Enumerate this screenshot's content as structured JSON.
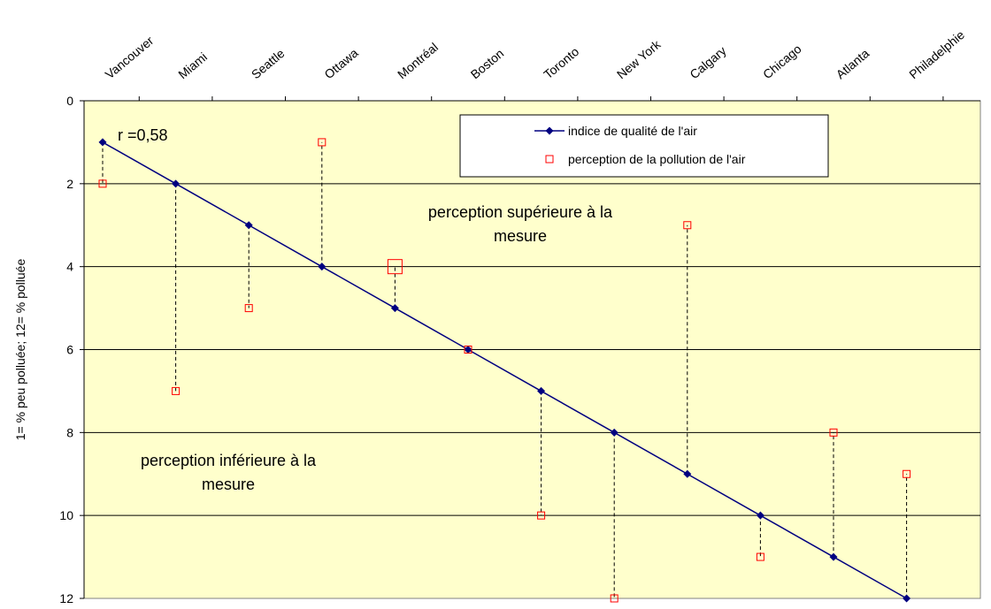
{
  "chart_data": {
    "type": "line",
    "categories": [
      "Vancouver",
      "Miami",
      "Seattle",
      "Ottawa",
      "Montréal",
      "Boston",
      "Toronto",
      "New York",
      "Calgary",
      "Chicago",
      "Atlanta",
      "Philadelphie"
    ],
    "series": [
      {
        "name": "indice de qualité de l'air",
        "color": "#000080",
        "values": [
          1,
          2,
          3,
          4,
          5,
          6,
          7,
          8,
          9,
          10,
          11,
          12
        ]
      },
      {
        "name": "perception de la pollution de l'air",
        "color": "#ff0000",
        "values": [
          2,
          7,
          5,
          1,
          4,
          6,
          10,
          12,
          3,
          11,
          8,
          9
        ]
      }
    ],
    "highlight_index": 4,
    "y_label": "1=  % peu polluée; 12= %  polluée",
    "annotations": {
      "r": "r =0,58",
      "above": [
        "perception supérieure à la",
        "mesure"
      ],
      "below": [
        "perception inférieure à la",
        "mesure"
      ]
    },
    "ylim": [
      0,
      12
    ],
    "yticks": [
      0,
      2,
      4,
      6,
      8,
      10,
      12
    ],
    "y_inverted": true,
    "grid": true,
    "background": "#ffffcc",
    "legend": "top-right"
  }
}
